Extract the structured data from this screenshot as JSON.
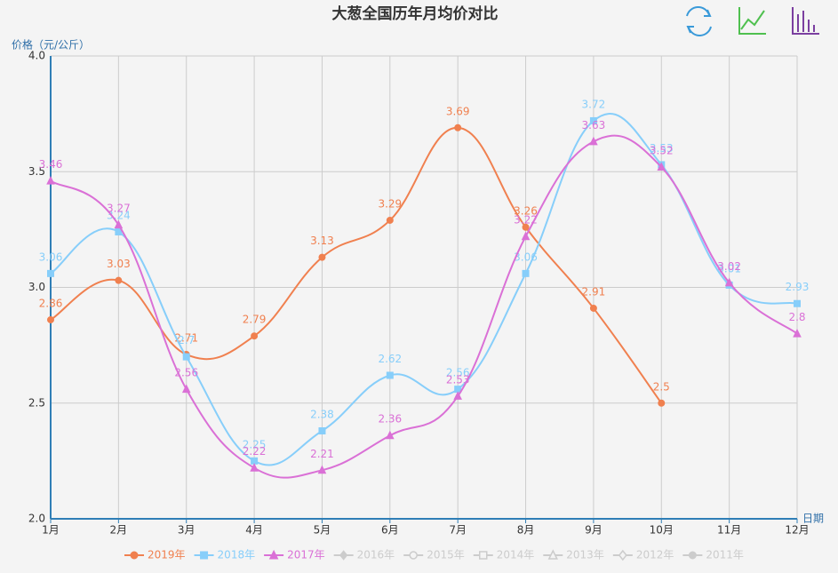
{
  "chart_data": {
    "type": "line",
    "title": "大葱全国历年月均价对比",
    "y_label": "价格（元/公斤）",
    "x_label": "日期",
    "categories": [
      "1月",
      "2月",
      "3月",
      "4月",
      "5月",
      "6月",
      "7月",
      "8月",
      "9月",
      "10月",
      "11月",
      "12月"
    ],
    "ylim": [
      2.0,
      4.0
    ],
    "yticks": [
      {
        "value": 2.0,
        "label": "2.0"
      },
      {
        "value": 2.5,
        "label": "2.5"
      },
      {
        "value": 3.0,
        "label": "3.0"
      },
      {
        "value": 3.5,
        "label": "3.5"
      },
      {
        "value": 4.0,
        "label": "4.0"
      }
    ],
    "grid": true,
    "smooth": true,
    "legend": "bottom",
    "series": [
      {
        "name": "2019年",
        "color": "#f0804f",
        "symbol": "circle",
        "selected": true,
        "values": [
          2.86,
          3.03,
          2.71,
          2.79,
          3.13,
          3.29,
          3.69,
          3.26,
          2.91,
          2.5,
          null,
          null
        ]
      },
      {
        "name": "2018年",
        "color": "#87cefa",
        "symbol": "rect",
        "selected": true,
        "values": [
          3.06,
          3.24,
          2.7,
          2.25,
          2.38,
          2.62,
          2.56,
          3.06,
          3.72,
          3.53,
          3.01,
          2.93
        ]
      },
      {
        "name": "2017年",
        "color": "#da70d6",
        "symbol": "triangle",
        "selected": true,
        "values": [
          3.46,
          3.27,
          2.56,
          2.22,
          2.21,
          2.36,
          2.53,
          3.22,
          3.63,
          3.52,
          3.02,
          2.8
        ]
      },
      {
        "name": "2016年",
        "color": "#cccccc",
        "symbol": "diamond",
        "selected": false,
        "values": [
          null,
          null,
          null,
          null,
          null,
          null,
          null,
          null,
          null,
          null,
          null,
          null
        ]
      },
      {
        "name": "2015年",
        "color": "#cccccc",
        "symbol": "emptyCircle",
        "selected": false,
        "values": [
          null,
          null,
          null,
          null,
          null,
          null,
          null,
          null,
          null,
          null,
          null,
          null
        ]
      },
      {
        "name": "2014年",
        "color": "#cccccc",
        "symbol": "emptyRect",
        "selected": false,
        "values": [
          null,
          null,
          null,
          null,
          null,
          null,
          null,
          null,
          null,
          null,
          null,
          null
        ]
      },
      {
        "name": "2013年",
        "color": "#cccccc",
        "symbol": "emptyTriangle",
        "selected": false,
        "values": [
          null,
          null,
          null,
          null,
          null,
          null,
          null,
          null,
          null,
          null,
          null,
          null
        ]
      },
      {
        "name": "2012年",
        "color": "#cccccc",
        "symbol": "emptyDiamond",
        "selected": false,
        "values": [
          null,
          null,
          null,
          null,
          null,
          null,
          null,
          null,
          null,
          null,
          null,
          null
        ]
      },
      {
        "name": "2011年",
        "color": "#cccccc",
        "symbol": "circle",
        "selected": false,
        "values": [
          null,
          null,
          null,
          null,
          null,
          null,
          null,
          null,
          null,
          null,
          null,
          null
        ]
      }
    ]
  }
}
